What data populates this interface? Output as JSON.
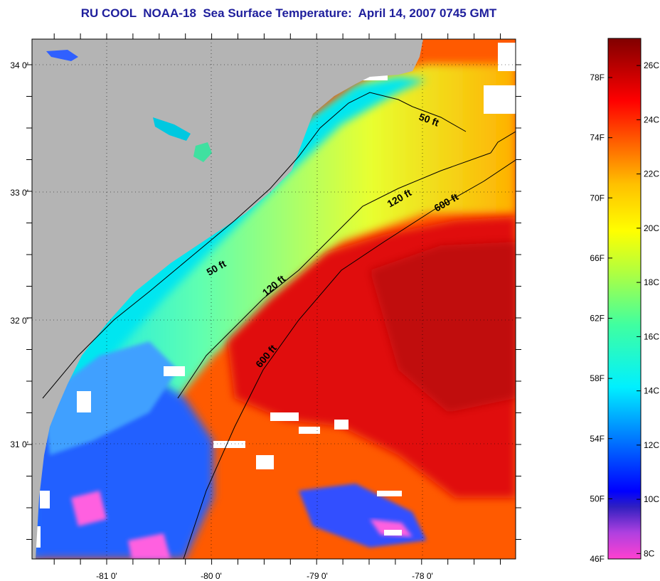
{
  "title": "RU COOL  NOAA-18  Sea Surface Temperature:  April 14, 2007 0745 GMT",
  "axes": {
    "lon_labels": [
      "-81 0'",
      "-80 0'",
      "-79 0'",
      "-78 0'"
    ],
    "lat_labels": [
      "34 0'",
      "33 0'",
      "32 0'",
      "31 0'"
    ]
  },
  "contours": [
    {
      "label": "50 ft",
      "depth": 50
    },
    {
      "label": "50 ft",
      "depth": 50
    },
    {
      "label": "120 ft",
      "depth": 120
    },
    {
      "label": "120 ft",
      "depth": 120
    },
    {
      "label": "600 ft",
      "depth": 600
    },
    {
      "label": "600 ft",
      "depth": 600
    }
  ],
  "colorbar": {
    "fahrenheit_labels": [
      "78F",
      "74F",
      "70F",
      "66F",
      "62F",
      "58F",
      "54F",
      "50F",
      "46F"
    ],
    "celsius_labels": [
      "26C",
      "24C",
      "22C",
      "20C",
      "18C",
      "16C",
      "14C",
      "12C",
      "10C",
      "8C"
    ]
  },
  "colors": {
    "land": "#b4b4b4",
    "title": "#1e1e9c",
    "warm_core": "#e01010",
    "cold_core": "#ff40d0"
  }
}
